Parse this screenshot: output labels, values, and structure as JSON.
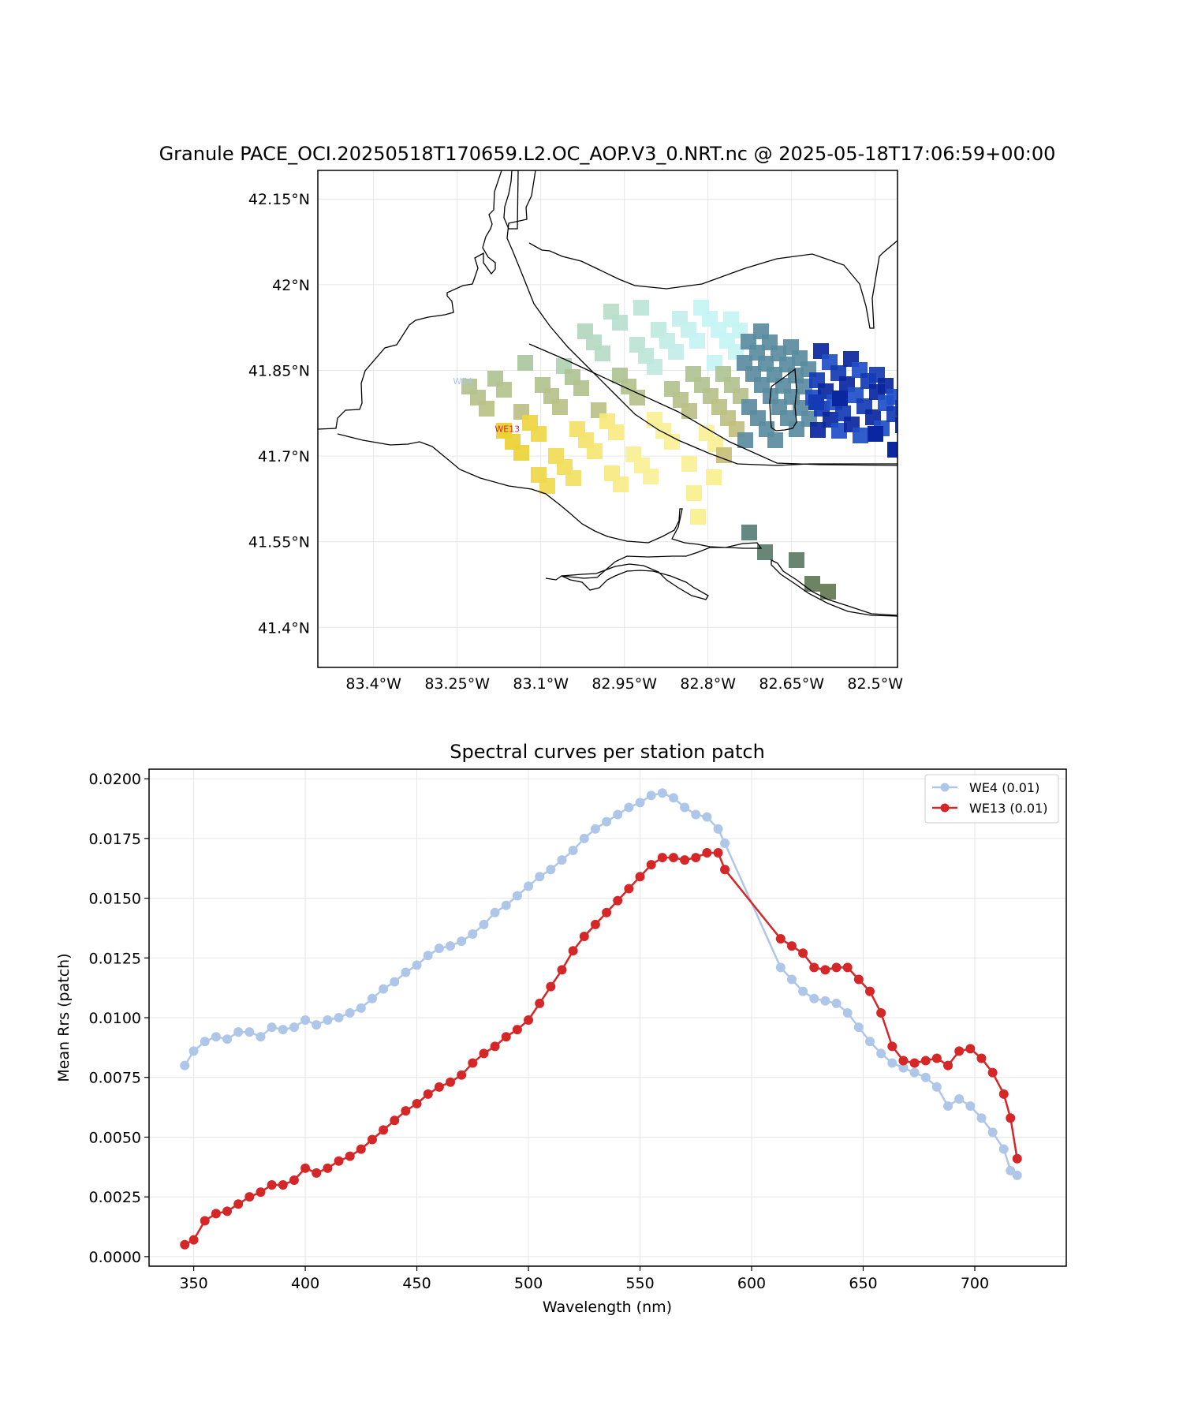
{
  "map": {
    "title": "Granule PACE_OCI.20250518T170659.L2.OC_AOP.V3_0.NRT.nc @ 2025-05-18T17:06:59+00:00",
    "lon_range": [
      -83.5,
      -82.46
    ],
    "lat_range": [
      41.33,
      42.2
    ],
    "lon_ticks": [
      -83.4,
      -83.25,
      -83.1,
      -82.95,
      -82.8,
      -82.65,
      -82.5
    ],
    "lon_tick_labels": [
      "83.4°W",
      "83.25°W",
      "83.1°W",
      "82.95°W",
      "82.8°W",
      "82.65°W",
      "82.5°W"
    ],
    "lat_ticks": [
      42.15,
      42.0,
      41.85,
      41.7,
      41.55,
      41.4
    ],
    "lat_tick_labels": [
      "42.15°N",
      "42°N",
      "41.85°N",
      "41.7°N",
      "41.55°N",
      "41.4°N"
    ],
    "station_labels": [
      {
        "name": "WE4",
        "lon": -83.24,
        "lat": 41.826,
        "color": "#aec7e8"
      },
      {
        "name": "WE13",
        "lon": -83.16,
        "lat": 41.742,
        "color": "#d62728"
      }
    ],
    "pixel_colors": {
      "west": "#a8c49a",
      "yellow": "#e8c81a",
      "cyan": "#c6f4f4",
      "blue": "#1f4fc8",
      "navy": "#00128c",
      "teal": "#5a8ca0"
    }
  },
  "chart_data": {
    "type": "line",
    "title": "Spectral curves per station patch",
    "xlabel": "Wavelength (nm)",
    "ylabel": "Mean Rrs (patch)",
    "xlim": [
      330,
      741
    ],
    "ylim": [
      -0.0004,
      0.0204
    ],
    "xticks": [
      350,
      400,
      450,
      500,
      550,
      600,
      650,
      700
    ],
    "yticks": [
      0.0,
      0.0025,
      0.005,
      0.0075,
      0.01,
      0.0125,
      0.015,
      0.0175,
      0.02
    ],
    "ytick_labels": [
      "0.0000",
      "0.0025",
      "0.0050",
      "0.0075",
      "0.0100",
      "0.0125",
      "0.0150",
      "0.0175",
      "0.0200"
    ],
    "grid": true,
    "legend_position": "top-right",
    "series": [
      {
        "name": "WE4 (0.01)",
        "color": "#aec7e8",
        "x": [
          346,
          350,
          355,
          360,
          365,
          370,
          375,
          380,
          385,
          390,
          395,
          400,
          405,
          410,
          415,
          420,
          425,
          430,
          435,
          440,
          445,
          450,
          455,
          460,
          465,
          470,
          475,
          480,
          485,
          490,
          495,
          500,
          505,
          510,
          515,
          520,
          525,
          530,
          535,
          540,
          545,
          550,
          555,
          560,
          565,
          570,
          575,
          580,
          585,
          588,
          613,
          618,
          623,
          628,
          633,
          638,
          643,
          648,
          653,
          658,
          663,
          668,
          673,
          678,
          683,
          688,
          693,
          698,
          703,
          708,
          713,
          716,
          719
        ],
        "y": [
          0.008,
          0.0086,
          0.009,
          0.0092,
          0.0091,
          0.0094,
          0.0094,
          0.0092,
          0.0096,
          0.0095,
          0.0096,
          0.0099,
          0.0097,
          0.0099,
          0.01,
          0.0102,
          0.0104,
          0.0108,
          0.0112,
          0.0115,
          0.0119,
          0.0122,
          0.0126,
          0.0129,
          0.013,
          0.0132,
          0.0135,
          0.0139,
          0.0144,
          0.0147,
          0.0151,
          0.0155,
          0.0159,
          0.0162,
          0.0166,
          0.017,
          0.0175,
          0.0179,
          0.0182,
          0.0185,
          0.0188,
          0.019,
          0.0193,
          0.0194,
          0.0192,
          0.0188,
          0.0185,
          0.0184,
          0.0179,
          0.0173,
          0.0121,
          0.0116,
          0.0111,
          0.0108,
          0.0107,
          0.0106,
          0.0102,
          0.0096,
          0.009,
          0.0085,
          0.0081,
          0.0079,
          0.0077,
          0.0075,
          0.0071,
          0.0063,
          0.0066,
          0.0063,
          0.0058,
          0.0052,
          0.0045,
          0.0036,
          0.0034
        ]
      },
      {
        "name": "WE13 (0.01)",
        "color": "#d62728",
        "x": [
          346,
          350,
          355,
          360,
          365,
          370,
          375,
          380,
          385,
          390,
          395,
          400,
          405,
          410,
          415,
          420,
          425,
          430,
          435,
          440,
          445,
          450,
          455,
          460,
          465,
          470,
          475,
          480,
          485,
          490,
          495,
          500,
          505,
          510,
          515,
          520,
          525,
          530,
          535,
          540,
          545,
          550,
          555,
          560,
          565,
          570,
          575,
          580,
          585,
          588,
          613,
          618,
          623,
          628,
          633,
          638,
          643,
          648,
          653,
          658,
          663,
          668,
          673,
          678,
          683,
          688,
          693,
          698,
          703,
          708,
          713,
          716,
          719
        ],
        "y": [
          0.0005,
          0.0007,
          0.0015,
          0.0018,
          0.0019,
          0.0022,
          0.0025,
          0.0027,
          0.003,
          0.003,
          0.0032,
          0.0037,
          0.0035,
          0.0037,
          0.004,
          0.0042,
          0.0045,
          0.0049,
          0.0053,
          0.0057,
          0.0061,
          0.0064,
          0.0068,
          0.0071,
          0.0073,
          0.0076,
          0.0081,
          0.0085,
          0.0088,
          0.0092,
          0.0095,
          0.0099,
          0.0106,
          0.0113,
          0.012,
          0.0128,
          0.0134,
          0.0139,
          0.0144,
          0.0149,
          0.0154,
          0.0159,
          0.0164,
          0.0167,
          0.0167,
          0.0166,
          0.0167,
          0.0169,
          0.0169,
          0.0162,
          0.0133,
          0.013,
          0.0127,
          0.0121,
          0.012,
          0.0121,
          0.0121,
          0.0116,
          0.0111,
          0.0102,
          0.0088,
          0.0082,
          0.0081,
          0.0082,
          0.0083,
          0.008,
          0.0086,
          0.0087,
          0.0083,
          0.0077,
          0.0068,
          0.0058,
          0.0041
        ]
      }
    ]
  }
}
